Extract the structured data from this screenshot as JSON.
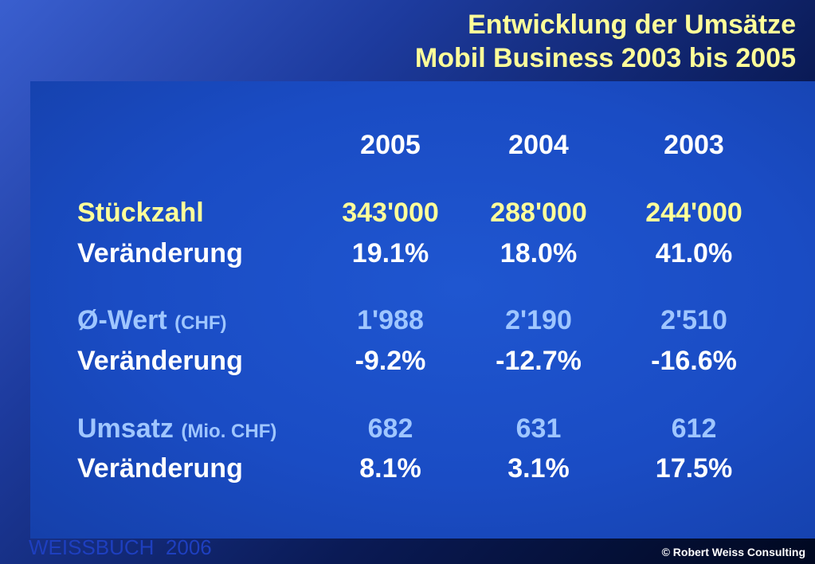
{
  "title": {
    "line1": "Entwicklung der Umsätze",
    "line2": "Mobil Business 2003 bis 2005"
  },
  "table": {
    "years": [
      "2005",
      "2004",
      "2003"
    ],
    "stueckzahl": {
      "label": "Stückzahl",
      "values": [
        "343'000",
        "288'000",
        "244'000"
      ]
    },
    "stueckzahl_change": {
      "label": "Veränderung",
      "values": [
        "19.1%",
        "18.0%",
        "41.0%"
      ]
    },
    "wert": {
      "label": "Ø-Wert",
      "unit": "(CHF)",
      "values": [
        "1'988",
        "2'190",
        "2'510"
      ]
    },
    "wert_change": {
      "label": "Veränderung",
      "values": [
        "-9.2%",
        "-12.7%",
        "-16.6%"
      ]
    },
    "umsatz": {
      "label": "Umsatz",
      "unit": "(Mio. CHF)",
      "values": [
        "682",
        "631",
        "612"
      ]
    },
    "umsatz_change": {
      "label": "Veränderung",
      "values": [
        "8.1%",
        "3.1%",
        "17.5%"
      ]
    }
  },
  "footer": {
    "left": "WEISSBUCH  2006",
    "right": "© Robert Weiss Consulting"
  },
  "colors": {
    "title": "#ffff99",
    "highlight_yellow": "#ffff99",
    "highlight_blue": "#9fc6ff",
    "text": "#ffffff",
    "panel": "#1a4cc4"
  }
}
